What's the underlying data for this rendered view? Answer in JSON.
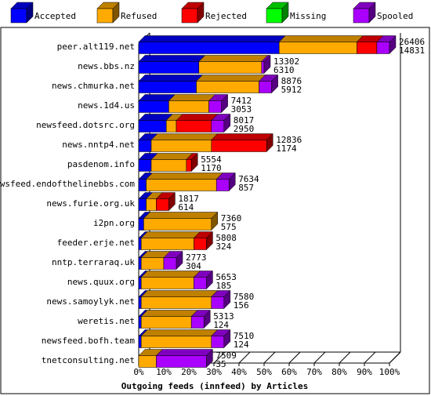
{
  "legend": [
    {
      "label": "Accepted",
      "color": "#0000ff"
    },
    {
      "label": "Refused",
      "color": "#ffaa00"
    },
    {
      "label": "Rejected",
      "color": "#ff0000"
    },
    {
      "label": "Missing",
      "color": "#00ff00"
    },
    {
      "label": "Spooled",
      "color": "#aa00ff"
    }
  ],
  "chart_data": {
    "type": "bar",
    "orientation": "horizontal",
    "stacked": true,
    "title": "",
    "xlabel": "Outgoing feeds (innfeed) by Articles",
    "ylabel": "",
    "xlim": [
      0,
      100
    ],
    "x_unit": "%",
    "x_ticks": [
      "0%",
      "10%",
      "20%",
      "30%",
      "40%",
      "50%",
      "60%",
      "70%",
      "80%",
      "90%",
      "100%"
    ],
    "legend_position": "top",
    "grid": false,
    "categories": [
      "peer.alt119.net",
      "news.bbs.nz",
      "news.chmurka.net",
      "news.1d4.us",
      "newsfeed.dotsrc.org",
      "news.nntp4.net",
      "pasdenom.info",
      "newsfeed.endofthelinebbs.com",
      "news.furie.org.uk",
      "i2pn.org",
      "feeder.erje.net",
      "nntp.terraraq.uk",
      "news.quux.org",
      "news.samoylyk.net",
      "weretis.net",
      "newsfeed.bofh.team",
      "tnetconsulting.net"
    ],
    "offered_total": [
      26406,
      13302,
      8876,
      7412,
      8017,
      12836,
      5554,
      7634,
      1817,
      7360,
      5808,
      2773,
      5653,
      7580,
      5313,
      7510,
      7509
    ],
    "accepted_total": [
      14831,
      6310,
      5912,
      3053,
      2950,
      1174,
      1170,
      857,
      614,
      575,
      324,
      304,
      185,
      156,
      124,
      124,
      35
    ],
    "series": [
      {
        "name": "Accepted",
        "values": [
          56,
          24,
          23,
          12,
          11,
          5,
          5,
          3,
          3,
          2,
          1,
          1,
          1,
          1,
          1,
          1,
          0
        ]
      },
      {
        "name": "Refused",
        "values": [
          31,
          25,
          25,
          16,
          4,
          24,
          14,
          28,
          4,
          27,
          21,
          9,
          21,
          28,
          20,
          28,
          7
        ]
      },
      {
        "name": "Rejected",
        "values": [
          8,
          0,
          0,
          0,
          14,
          22,
          2,
          0,
          5,
          0,
          5,
          0,
          0,
          0,
          0,
          0,
          0
        ]
      },
      {
        "name": "Missing",
        "values": [
          0,
          0,
          0,
          0,
          0,
          0,
          0,
          0,
          0,
          0,
          0,
          0,
          0,
          0,
          0,
          0,
          0
        ]
      },
      {
        "name": "Spooled",
        "values": [
          5,
          1,
          5,
          5,
          5,
          0,
          0,
          5,
          0,
          0,
          0,
          5,
          5,
          5,
          5,
          5,
          20
        ]
      }
    ]
  }
}
